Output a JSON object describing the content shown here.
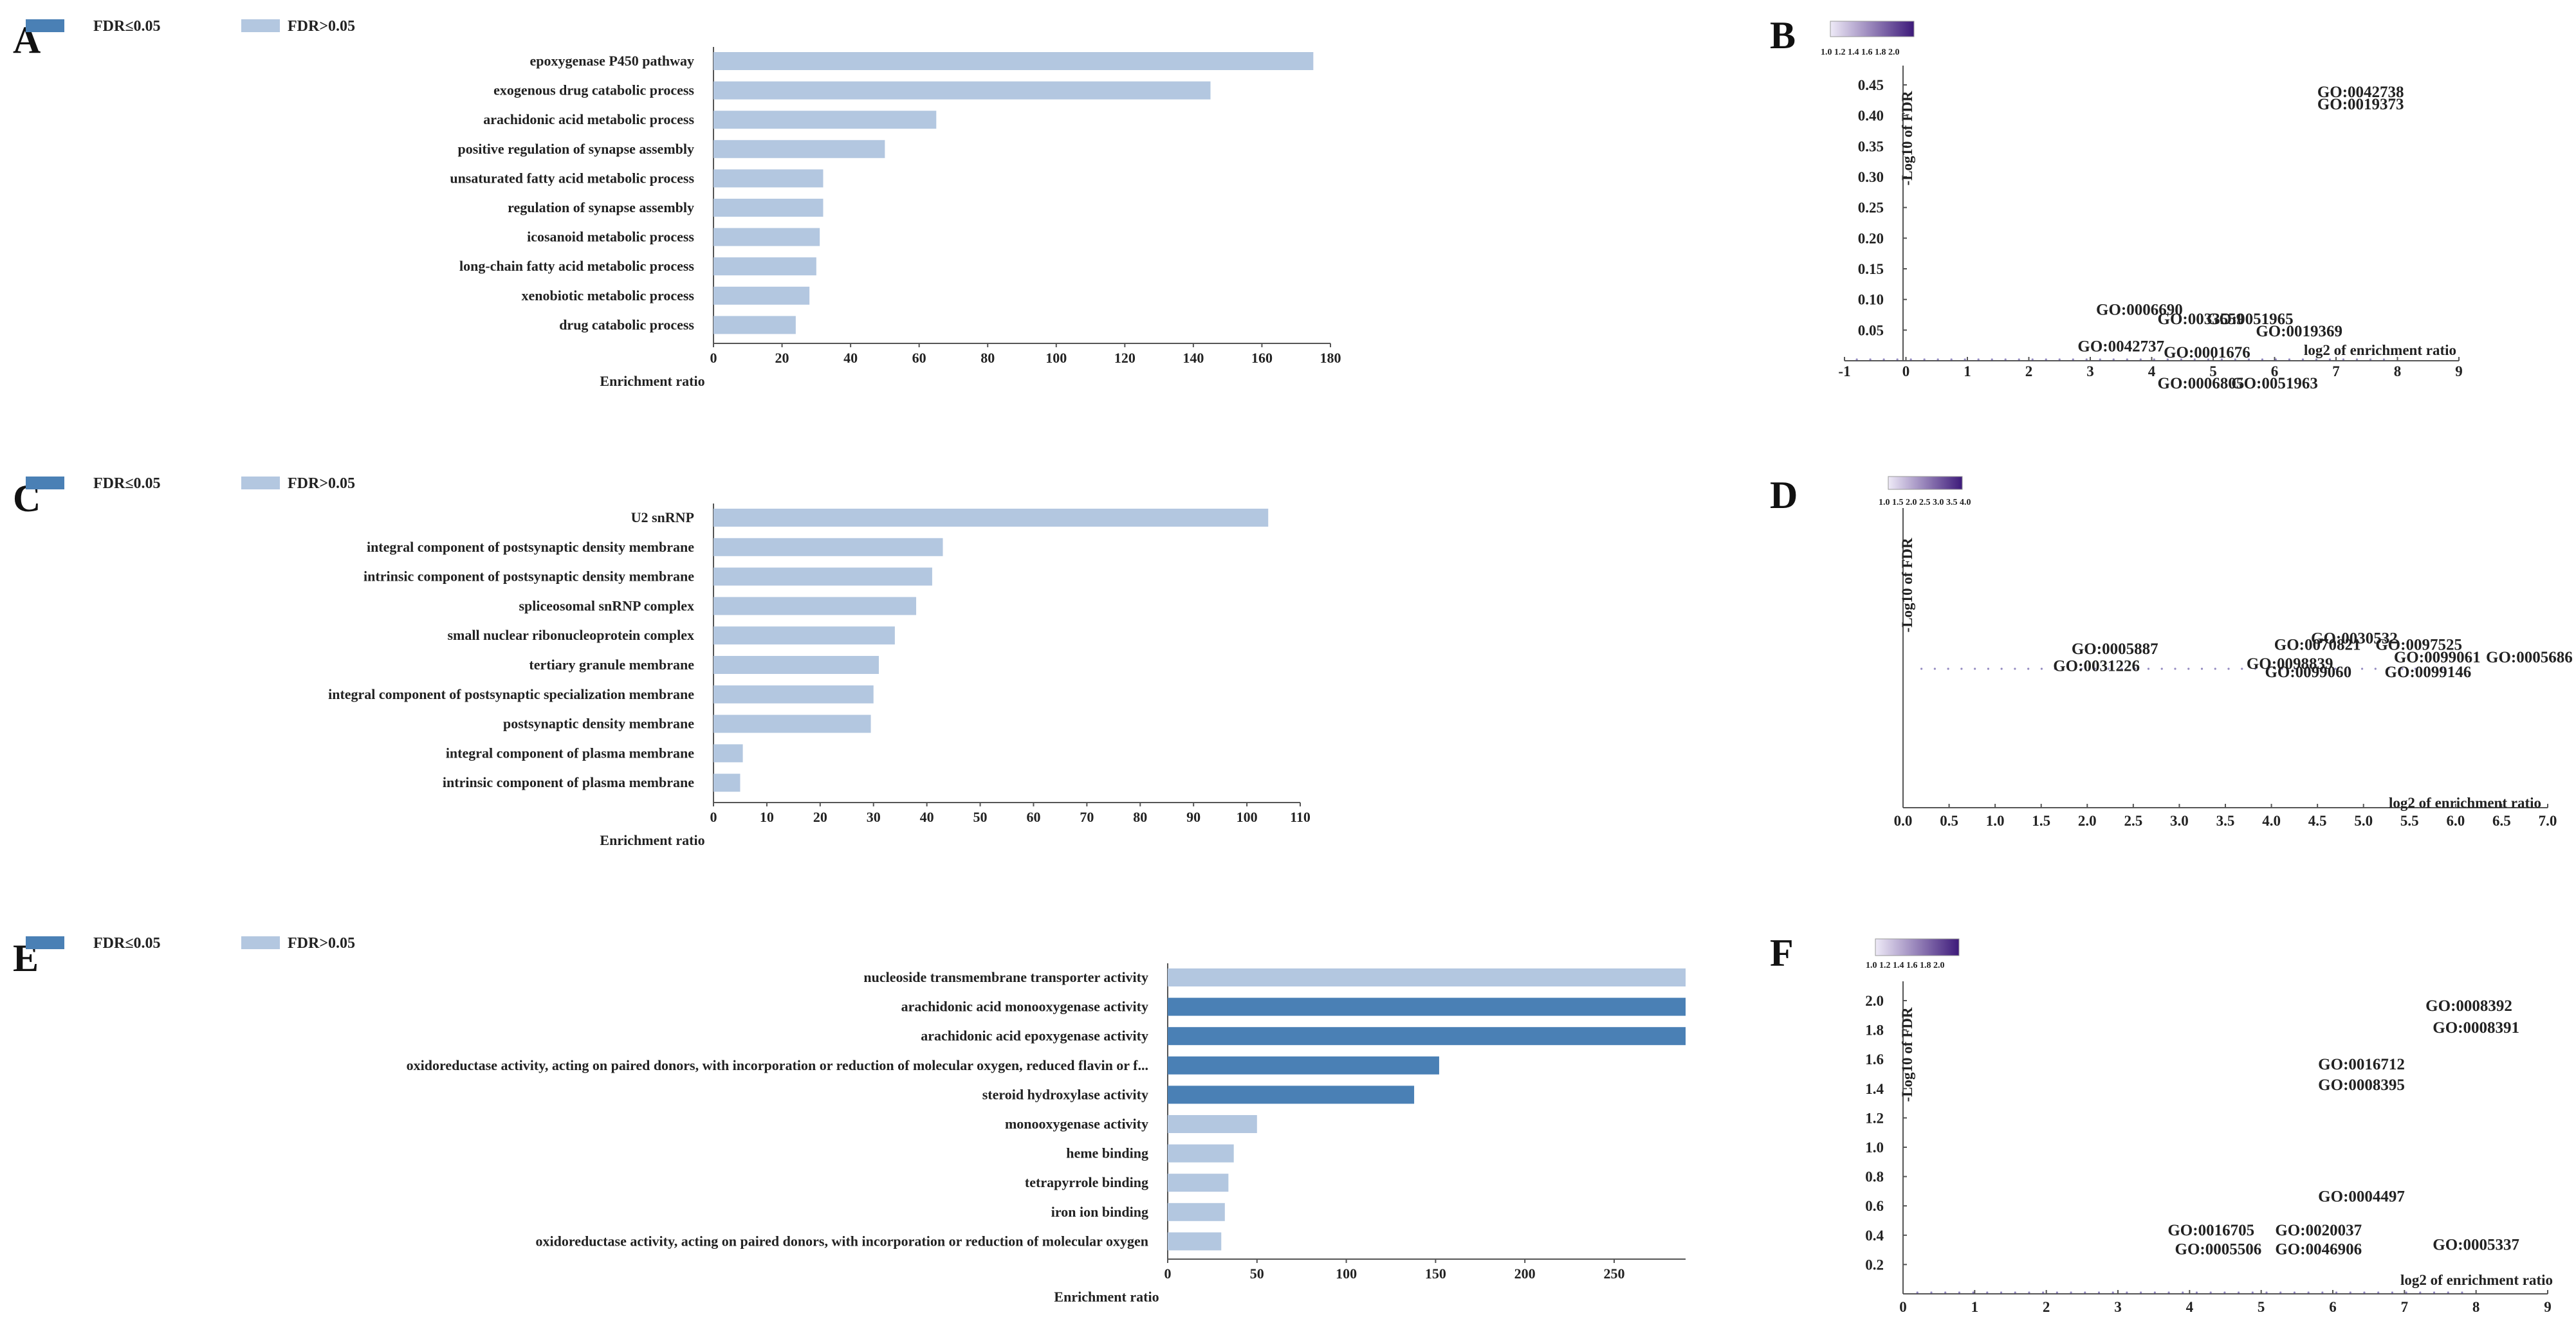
{
  "colors": {
    "sig": "#4a80b5",
    "nonsig": "#b3c7e0",
    "point": "#3b2a8c",
    "cbar_low": "#eeeaf7",
    "cbar_high": "#3d1a7a"
  },
  "legend": {
    "sig_label": "FDR≤0.05",
    "nonsig_label": "FDR>0.05"
  },
  "chart_data": [
    {
      "panel": "A",
      "type": "bar",
      "orientation": "horizontal",
      "xlabel": "Enrichment ratio",
      "xlim": [
        0,
        180
      ],
      "xticks": [
        0,
        20,
        40,
        60,
        80,
        100,
        120,
        140,
        160,
        180
      ],
      "categories": [
        "epoxygenase P450 pathway",
        "exogenous drug catabolic process",
        "arachidonic acid metabolic process",
        "positive regulation of synapse assembly",
        "unsaturated fatty acid metabolic process",
        "regulation of synapse assembly",
        "icosanoid metabolic process",
        "long-chain fatty acid metabolic process",
        "xenobiotic metabolic process",
        "drug catabolic process"
      ],
      "values": [
        175,
        145,
        65,
        50,
        32,
        32,
        31,
        30,
        28,
        24
      ],
      "significant": [
        false,
        false,
        false,
        false,
        false,
        false,
        false,
        false,
        false,
        false
      ]
    },
    {
      "panel": "B",
      "type": "scatter",
      "xlabel": "log2 of enrichment ratio",
      "ylabel": "-Log10 of FDR",
      "xlim": [
        -1,
        9
      ],
      "ylim": [
        0,
        0.45
      ],
      "xticks": [
        "-1",
        "0",
        "1",
        "2",
        "3",
        "4",
        "5",
        "6",
        "7",
        "8",
        "9"
      ],
      "yticks": [
        "0.05",
        "0.10",
        "0.15",
        "0.20",
        "0.25",
        "0.30",
        "0.35",
        "0.40",
        "0.45"
      ],
      "colorbar_ticks": "1.0 1.2 1.4 1.6 1.8 2.0",
      "labels": [
        {
          "text": "GO:0042738",
          "x": 7.4,
          "y": 0.43
        },
        {
          "text": "GO:0019373",
          "x": 7.4,
          "y": 0.41
        },
        {
          "text": "GO:0006690",
          "x": 3.8,
          "y": 0.075
        },
        {
          "text": "GO:0033559",
          "x": 4.8,
          "y": 0.06
        },
        {
          "text": "GO:0051965",
          "x": 5.6,
          "y": 0.06
        },
        {
          "text": "GO:0019369",
          "x": 6.4,
          "y": 0.04
        },
        {
          "text": "GO:0042737",
          "x": 3.5,
          "y": 0.015
        },
        {
          "text": "GO:0001676",
          "x": 4.9,
          "y": 0.005
        },
        {
          "text": "GO:0006805",
          "x": 4.8,
          "y": -0.045
        },
        {
          "text": "GO:0051963",
          "x": 6.0,
          "y": -0.045
        }
      ]
    },
    {
      "panel": "C",
      "type": "bar",
      "orientation": "horizontal",
      "xlabel": "Enrichment ratio",
      "xlim": [
        0,
        110
      ],
      "xticks": [
        0,
        10,
        20,
        30,
        40,
        50,
        60,
        70,
        80,
        90,
        100,
        110
      ],
      "categories": [
        "U2 snRNP",
        "integral component of postsynaptic density membrane",
        "intrinsic component of postsynaptic density membrane",
        "spliceosomal snRNP complex",
        "small nuclear ribonucleoprotein complex",
        "tertiary granule membrane",
        "integral component of postsynaptic specialization membrane",
        "postsynaptic density membrane",
        "integral component of plasma membrane",
        "intrinsic component of plasma membrane"
      ],
      "values": [
        104,
        43,
        41,
        38,
        34,
        31,
        30,
        29.5,
        5.5,
        5
      ],
      "significant": [
        false,
        false,
        false,
        false,
        false,
        false,
        false,
        false,
        false,
        false
      ]
    },
    {
      "panel": "D",
      "type": "scatter",
      "xlabel": "log2 of enrichment ratio",
      "ylabel": "-Log10 of FDR",
      "xlim": [
        0,
        7
      ],
      "xticks": [
        "0.0",
        "0.5",
        "1.0",
        "1.5",
        "2.0",
        "2.5",
        "3.0",
        "3.5",
        "4.0",
        "4.5",
        "5.0",
        "5.5",
        "6.0",
        "6.5",
        "7.0"
      ],
      "colorbar_ticks": "1.0 1.5 2.0 2.5 3.0 3.5 4.0",
      "labels": [
        {
          "text": "GO:0030532",
          "x": 4.9,
          "y": 0.62
        },
        {
          "text": "GO:0070821",
          "x": 4.5,
          "y": 0.59
        },
        {
          "text": "GO:0097525",
          "x": 5.6,
          "y": 0.59
        },
        {
          "text": "GO:0005887",
          "x": 2.3,
          "y": 0.57
        },
        {
          "text": "GO:0099061",
          "x": 5.8,
          "y": 0.53
        },
        {
          "text": "GO:0005686",
          "x": 6.8,
          "y": 0.53
        },
        {
          "text": "GO:0098839",
          "x": 4.2,
          "y": 0.5
        },
        {
          "text": "GO:0031226",
          "x": 2.1,
          "y": 0.49
        },
        {
          "text": "GO:0099060",
          "x": 4.4,
          "y": 0.46
        },
        {
          "text": "GO:0099146",
          "x": 5.7,
          "y": 0.46
        }
      ]
    },
    {
      "panel": "E",
      "type": "bar",
      "orientation": "horizontal",
      "xlabel": "Enrichment ratio",
      "xlim": [
        0,
        290
      ],
      "xticks": [
        0,
        50,
        100,
        150,
        200,
        250
      ],
      "categories": [
        "nucleoside transmembrane transporter activity",
        "arachidonic acid monooxygenase activity",
        "arachidonic acid epoxygenase activity",
        "oxidoreductase activity, acting on paired donors, with incorporation or reduction of molecular oxygen, reduced flavin or f...",
        "steroid hydroxylase activity",
        "monooxygenase activity",
        "heme binding",
        "tetrapyrrole binding",
        "iron ion binding",
        "oxidoreductase activity, acting on paired donors, with incorporation or reduction of molecular oxygen"
      ],
      "values": [
        290,
        290,
        290,
        152,
        138,
        50,
        37,
        34,
        32,
        30
      ],
      "significant": [
        false,
        true,
        true,
        true,
        true,
        false,
        false,
        false,
        false,
        false
      ]
    },
    {
      "panel": "F",
      "type": "scatter",
      "xlabel": "log2 of enrichment ratio",
      "ylabel": "-Log10 of FDR",
      "xlim": [
        0,
        9
      ],
      "ylim": [
        0,
        2.0
      ],
      "xticks": [
        "0",
        "1",
        "2",
        "3",
        "4",
        "5",
        "6",
        "7",
        "8",
        "9"
      ],
      "yticks": [
        "0.2",
        "0.4",
        "0.6",
        "0.8",
        "1.0",
        "1.2",
        "1.4",
        "1.6",
        "1.8",
        "2.0"
      ],
      "colorbar_ticks": "1.0 1.2 1.4 1.6 1.8 2.0",
      "labels": [
        {
          "text": "GO:0008392",
          "x": 7.9,
          "y": 1.93
        },
        {
          "text": "GO:0008391",
          "x": 8.0,
          "y": 1.78
        },
        {
          "text": "GO:0016712",
          "x": 6.4,
          "y": 1.53
        },
        {
          "text": "GO:0008395",
          "x": 6.4,
          "y": 1.39
        },
        {
          "text": "GO:0004497",
          "x": 6.4,
          "y": 0.63
        },
        {
          "text": "GO:0016705",
          "x": 4.3,
          "y": 0.4
        },
        {
          "text": "GO:0020037",
          "x": 5.8,
          "y": 0.4
        },
        {
          "text": "GO:0005506",
          "x": 4.4,
          "y": 0.27
        },
        {
          "text": "GO:0046906",
          "x": 5.8,
          "y": 0.27
        },
        {
          "text": "GO:0005337",
          "x": 8.0,
          "y": 0.3
        }
      ]
    }
  ]
}
